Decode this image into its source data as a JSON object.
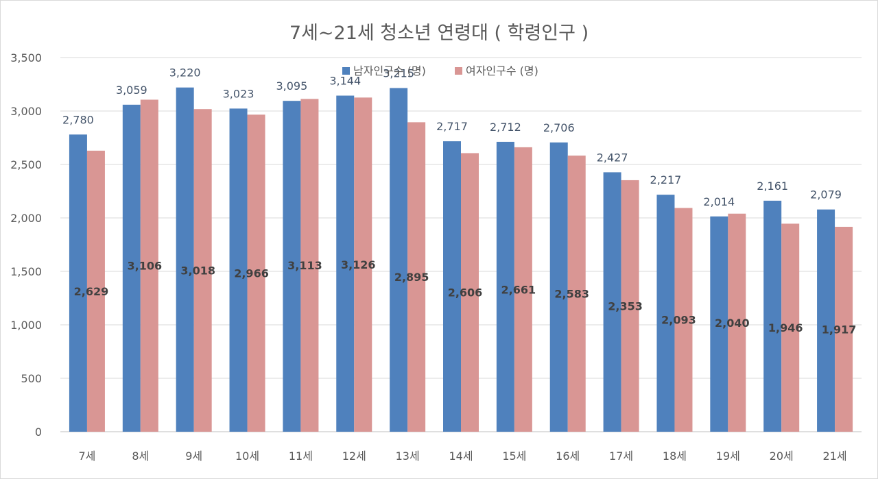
{
  "chart_data": {
    "type": "bar",
    "title": "7세~21세 청소년 연령대 ( 학령인구 )",
    "categories": [
      "7세",
      "8세",
      "9세",
      "10세",
      "11세",
      "12세",
      "13세",
      "14세",
      "15세",
      "16세",
      "17세",
      "18세",
      "19세",
      "20세",
      "21세"
    ],
    "series": [
      {
        "name": "남자인구수 (명)",
        "color": "#4f81bd",
        "values": [
          2780,
          3059,
          3220,
          3023,
          3095,
          3144,
          3215,
          2717,
          2712,
          2706,
          2427,
          2217,
          2014,
          2161,
          2079
        ],
        "labels": [
          "2,780",
          "3,059",
          "3,220",
          "3,023",
          "3,095",
          "3,144",
          "3,215",
          "2,717",
          "2,712",
          "2,706",
          "2,427",
          "2,217",
          "2,014",
          "2,161",
          "2,079"
        ]
      },
      {
        "name": "여자인구수 (명)",
        "color": "#d99694",
        "values": [
          2629,
          3106,
          3018,
          2966,
          3113,
          3126,
          2895,
          2606,
          2661,
          2583,
          2353,
          2093,
          2040,
          1946,
          1917
        ],
        "labels": [
          "2,629",
          "3,106",
          "3,018",
          "2,966",
          "3,113",
          "3,126",
          "2,895",
          "2,606",
          "2,661",
          "2,583",
          "2,353",
          "2,093",
          "2,040",
          "1,946",
          "1,917"
        ]
      }
    ],
    "ylim": [
      0,
      3500
    ],
    "yticks": [
      0,
      500,
      1000,
      1500,
      2000,
      2500,
      3000,
      3500
    ],
    "ytick_labels": [
      "0",
      "500",
      "1,000",
      "1,500",
      "2,000",
      "2,500",
      "3,000",
      "3,500"
    ],
    "grid": true,
    "legend_position": "top-center"
  }
}
